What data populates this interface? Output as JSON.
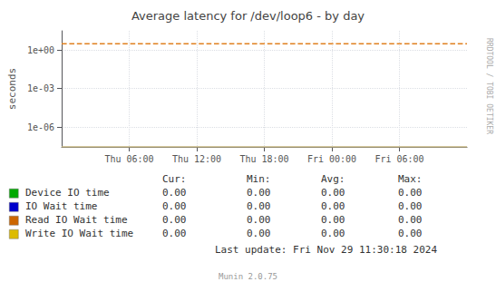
{
  "chart_data": {
    "type": "line",
    "title": "Average latency for /dev/loop6 - by day",
    "ylabel": "seconds",
    "log": "y",
    "grid": true,
    "xlim": [
      0,
      1.5
    ],
    "xticks": [
      {
        "value": 0.25,
        "label": "Thu 06:00"
      },
      {
        "value": 0.5,
        "label": "Thu 12:00"
      },
      {
        "value": 0.75,
        "label": "Thu 18:00"
      },
      {
        "value": 1.0,
        "label": "Fri 00:00"
      },
      {
        "value": 1.25,
        "label": "Fri 06:00"
      }
    ],
    "ylim": [
      3e-08,
      30
    ],
    "yticks": [
      {
        "value": 1e-06,
        "label": "1e-06"
      },
      {
        "value": 0.001,
        "label": "1e-03"
      },
      {
        "value": 1.0,
        "label": "1e+00"
      }
    ],
    "series": [
      {
        "name": "Device IO time",
        "color": "#00aa00",
        "stats": [
          "0.00",
          "0.00",
          "0.00",
          "0.00"
        ]
      },
      {
        "name": "IO Wait time",
        "color": "#0000cc",
        "stats": [
          "0.00",
          "0.00",
          "0.00",
          "0.00"
        ]
      },
      {
        "name": "Read IO Wait time",
        "color": "#cc6600",
        "stats": [
          "0.00",
          "0.00",
          "0.00",
          "0.00"
        ]
      },
      {
        "name": "Write IO Wait time",
        "color": "#ddbb00",
        "stats": [
          "0.00",
          "0.00",
          "0.00",
          "0.00"
        ]
      },
      {
        "x": [
          0,
          1.5
        ],
        "values": [
          3.0,
          3.0
        ],
        "color": "#e08020",
        "line_style": "dashed"
      },
      {
        "x": [
          0,
          1.5
        ],
        "values": [
          3e-08,
          3e-08
        ],
        "color": "#c8b880",
        "line_style": "solid"
      }
    ],
    "stats_headers": [
      "Cur:",
      "Min:",
      "Avg:",
      "Max:"
    ],
    "last_update": "Last update: Fri Nov 29 11:30:18 2024",
    "watermark": "RRDTOOL / TOBI OETIKER",
    "version": "Munin 2.0.75"
  }
}
